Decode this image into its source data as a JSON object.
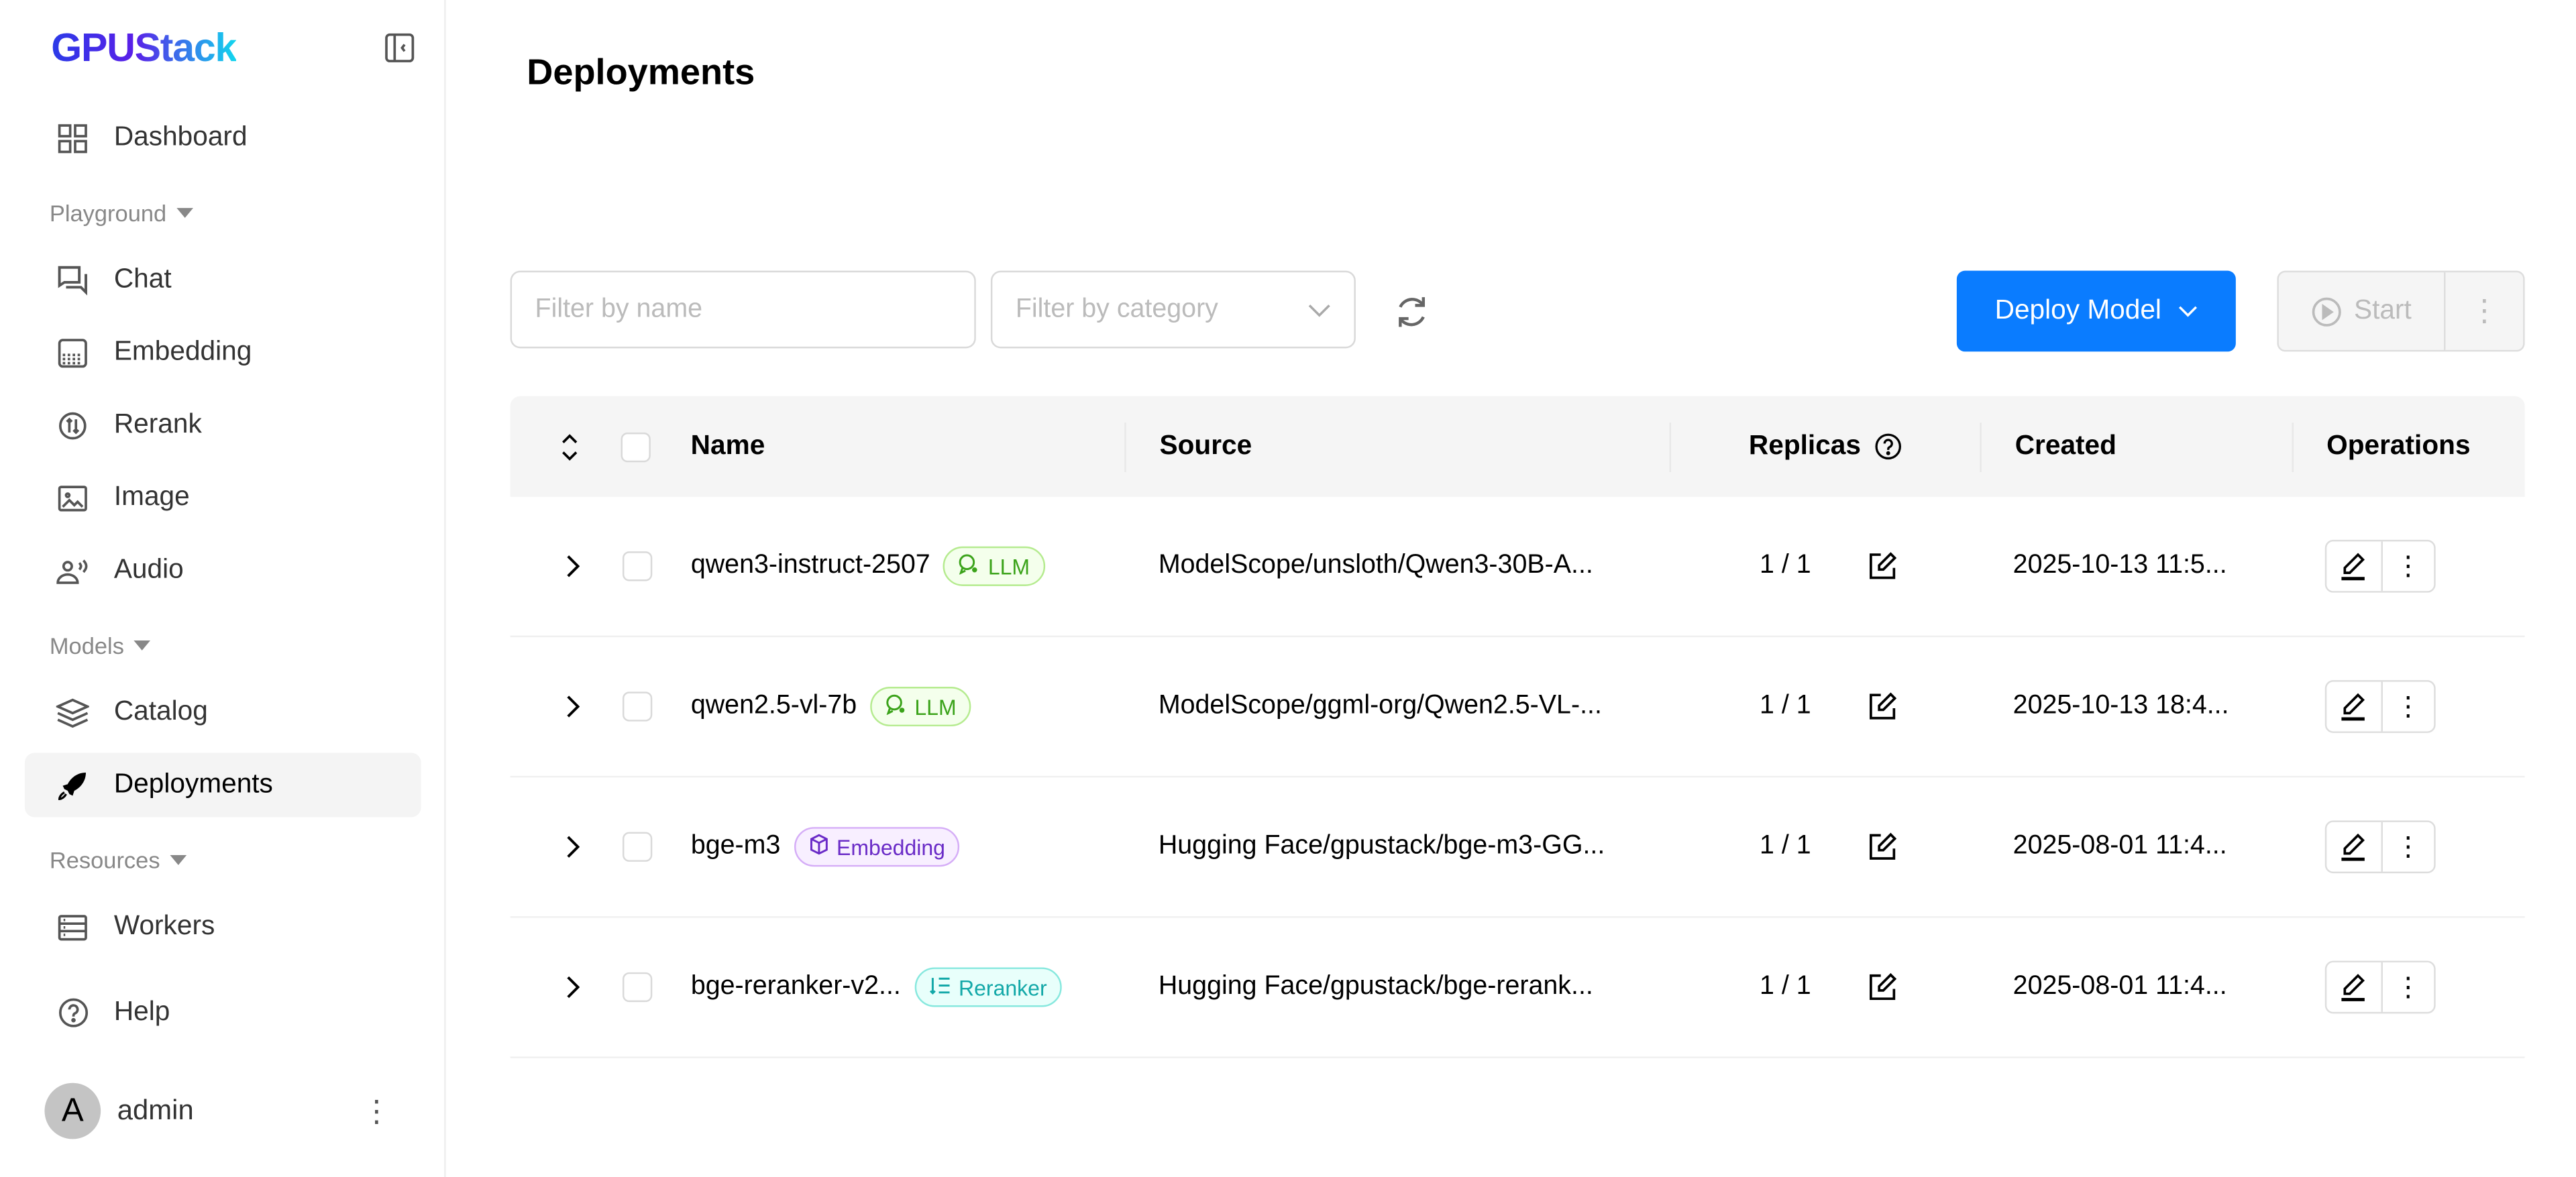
{
  "app": {
    "logo_text": "GPUStack",
    "brand_colors": [
      "#2b3be8",
      "#5a1fe8",
      "#12d6ee"
    ]
  },
  "sidebar": {
    "items": [
      {
        "label": "Dashboard",
        "icon": "dashboard-icon"
      },
      {
        "group": "Playground"
      },
      {
        "label": "Chat",
        "icon": "chat-icon"
      },
      {
        "label": "Embedding",
        "icon": "embedding-icon"
      },
      {
        "label": "Rerank",
        "icon": "rerank-icon"
      },
      {
        "label": "Image",
        "icon": "image-icon"
      },
      {
        "label": "Audio",
        "icon": "audio-icon"
      },
      {
        "group": "Models"
      },
      {
        "label": "Catalog",
        "icon": "layers-icon"
      },
      {
        "label": "Deployments",
        "icon": "rocket-icon",
        "active": true
      },
      {
        "group": "Resources"
      },
      {
        "label": "Workers",
        "icon": "server-icon"
      },
      {
        "label": "Help",
        "icon": "help-icon"
      }
    ],
    "user": {
      "initial": "A",
      "name": "admin"
    }
  },
  "page": {
    "title": "Deployments"
  },
  "toolbar": {
    "name_filter_placeholder": "Filter by name",
    "category_filter_placeholder": "Filter by category",
    "deploy_label": "Deploy Model",
    "start_label": "Start",
    "accent": "#0a7cff"
  },
  "table": {
    "columns": [
      "Name",
      "Source",
      "Replicas",
      "Created",
      "Operations"
    ],
    "rows": [
      {
        "name": "qwen3-instruct-2507",
        "tag": "LLM",
        "source": "ModelScope/unsloth/Qwen3-30B-A...",
        "replicas": "1 / 1",
        "created": "2025-10-13 11:5..."
      },
      {
        "name": "qwen2.5-vl-7b",
        "tag": "LLM",
        "source": "ModelScope/ggml-org/Qwen2.5-VL-...",
        "replicas": "1 / 1",
        "created": "2025-10-13 18:4..."
      },
      {
        "name": "bge-m3",
        "tag": "Embedding",
        "source": "Hugging Face/gpustack/bge-m3-GG...",
        "replicas": "1 / 1",
        "created": "2025-08-01 11:4..."
      },
      {
        "name": "bge-reranker-v2...",
        "tag": "Reranker",
        "source": "Hugging Face/gpustack/bge-rerank...",
        "replicas": "1 / 1",
        "created": "2025-08-01 11:4..."
      }
    ]
  }
}
